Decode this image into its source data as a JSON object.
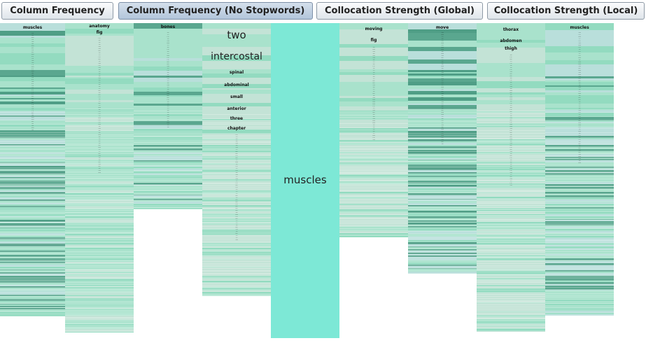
{
  "toolbar": {
    "tabs": [
      {
        "label": "Column Frequency",
        "active": false
      },
      {
        "label": "Column Frequency (No Stopwords)",
        "active": true
      },
      {
        "label": "Collocation Strength (Global)",
        "active": false
      },
      {
        "label": "Collocation Strength (Local)",
        "active": false
      }
    ]
  },
  "colors": {
    "light_mint": "#a9e2cc",
    "mint": "#93dbc0",
    "teal": "#5aa78f",
    "dark_teal": "#4f9e86",
    "pale_blue": "#b9dfdb",
    "pale_mint": "#c3e3d6",
    "aqua": "#7de8d6"
  },
  "columns": [
    {
      "top_word": "muscles",
      "words": [],
      "fill_fraction": 0.95
    },
    {
      "top_word": "anatomy",
      "words": [
        "fig"
      ],
      "fill_fraction": 1.0
    },
    {
      "top_word": "bones",
      "words": [],
      "fill_fraction": 0.6
    },
    {
      "top_word": "two",
      "words": [
        "intercostal",
        "spinal",
        "abdominal",
        "small",
        "anterior",
        "three",
        "chapter"
      ],
      "fill_fraction": 0.86
    },
    {
      "top_word": "muscles",
      "words": [],
      "fill_fraction": 1.0
    },
    {
      "top_word": "moving",
      "words": [
        "fig"
      ],
      "fill_fraction": 0.68
    },
    {
      "top_word": "move",
      "words": [],
      "fill_fraction": 0.8
    },
    {
      "top_word": "thorax",
      "words": [
        "abdomen",
        "thigh"
      ],
      "fill_fraction": 1.0
    },
    {
      "top_word": "muscles",
      "words": [],
      "fill_fraction": 0.94
    }
  ]
}
